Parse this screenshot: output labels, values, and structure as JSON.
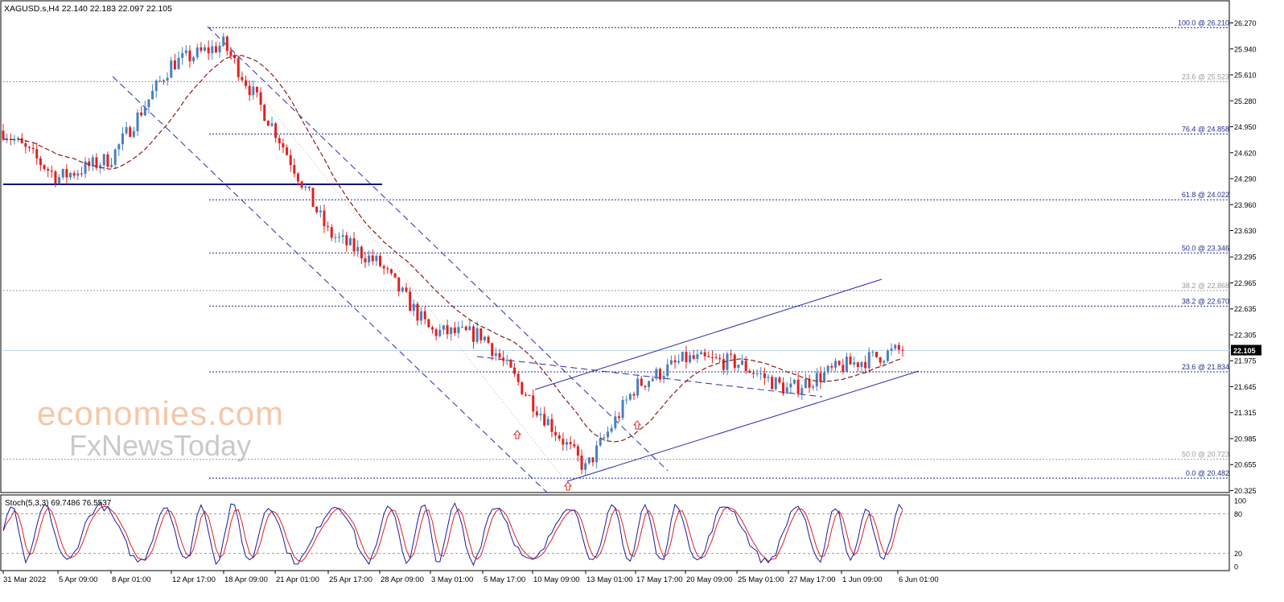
{
  "header": {
    "symbol_text": "XAGUSD.s,H4  22.140 22.183 22.097 22.105"
  },
  "price_axis": {
    "ticks": [
      "26.270",
      "25.940",
      "25.610",
      "25.280",
      "24.950",
      "24.620",
      "24.290",
      "23.960",
      "23.630",
      "23.295",
      "22.965",
      "22.635",
      "22.305",
      "21.975",
      "21.645",
      "21.315",
      "20.985",
      "20.655",
      "20.325"
    ],
    "current_price": "22.105"
  },
  "fib_levels": [
    {
      "label": "100.0 @ 26.210",
      "price": 26.21,
      "style": "blue"
    },
    {
      "label": "23.6 @ 25.523",
      "price": 25.523,
      "style": "gray"
    },
    {
      "label": "76.4 @ 24.858",
      "price": 24.858,
      "style": "blue"
    },
    {
      "label": "61.8 @ 24.022",
      "price": 24.022,
      "style": "blue"
    },
    {
      "label": "50.0 @ 23.346",
      "price": 23.346,
      "style": "blue"
    },
    {
      "label": "38.2 @ 22.868",
      "price": 22.868,
      "style": "gray"
    },
    {
      "label": "38.2 @ 22.670",
      "price": 22.67,
      "style": "blue"
    },
    {
      "label": "23.6 @ 21.834",
      "price": 21.834,
      "style": "blue"
    },
    {
      "label": "50.0 @ 20.723",
      "price": 20.723,
      "style": "gray"
    },
    {
      "label": "0.0 @ 20.482",
      "price": 20.482,
      "style": "blue"
    }
  ],
  "time_axis": {
    "labels": [
      "31 Mar 2022",
      "5 Apr 09:00",
      "8 Apr 01:00",
      "12 Apr 17:00",
      "18 Apr 09:00",
      "21 Apr 01:00",
      "25 Apr 17:00",
      "28 Apr 09:00",
      "3 May 01:00",
      "5 May 17:00",
      "10 May 09:00",
      "13 May 01:00",
      "17 May 17:00",
      "20 May 09:00",
      "25 May 01:00",
      "27 May 17:00",
      "1 Jun 09:00",
      "6 Jun 01:00"
    ]
  },
  "stoch": {
    "label": "Stoch(5,3,3) 69.7486 76.5537",
    "ticks": [
      "100",
      "80",
      "20",
      "0"
    ]
  },
  "watermark": {
    "line1": "economies.com",
    "line2": "FxNewsToday"
  },
  "colors": {
    "bull": "#4a7fbf",
    "bear": "#e02020",
    "ma": "#8b1a1a",
    "fib_blue": "#1f2f8f",
    "fib_gray": "#9a9a9a",
    "channel": "#2b2bb0",
    "stoch_main": "#1a1aa0",
    "stoch_signal": "#e02020",
    "watermark1": "#f5c7a8",
    "watermark2": "#c9c9c9"
  },
  "chart_data": {
    "type": "candlestick",
    "title": "XAGUSD.s,H4",
    "ohlc_last": {
      "open": 22.14,
      "high": 22.183,
      "low": 22.097,
      "close": 22.105
    },
    "y_range": [
      20.325,
      26.36
    ],
    "anchor_closes": [
      {
        "date": "31 Mar 2022",
        "price": 24.9
      },
      {
        "date": "5 Apr 09:00",
        "price": 24.3
      },
      {
        "date": "8 Apr 01:00",
        "price": 24.55
      },
      {
        "date": "12 Apr 17:00",
        "price": 25.75
      },
      {
        "date": "18 Apr 09:00",
        "price": 26.0
      },
      {
        "date": "21 Apr 01:00",
        "price": 24.9
      },
      {
        "date": "25 Apr 17:00",
        "price": 23.6
      },
      {
        "date": "28 Apr 09:00",
        "price": 23.2
      },
      {
        "date": "3 May 01:00",
        "price": 22.35
      },
      {
        "date": "5 May 17:00",
        "price": 22.3
      },
      {
        "date": "10 May 09:00",
        "price": 21.45
      },
      {
        "date": "13 May 01:00",
        "price": 20.6
      },
      {
        "date": "17 May 17:00",
        "price": 21.65
      },
      {
        "date": "20 May 09:00",
        "price": 22.0
      },
      {
        "date": "25 May 01:00",
        "price": 21.95
      },
      {
        "date": "27 May 17:00",
        "price": 21.6
      },
      {
        "date": "1 Jun 09:00",
        "price": 21.9
      },
      {
        "date": "6 Jun 01:00",
        "price": 22.105
      }
    ],
    "peak": {
      "price": 26.21
    },
    "trough": {
      "price": 20.482
    },
    "indicators": [
      "MA (dashed)",
      "Stoch(5,3,3)"
    ]
  }
}
